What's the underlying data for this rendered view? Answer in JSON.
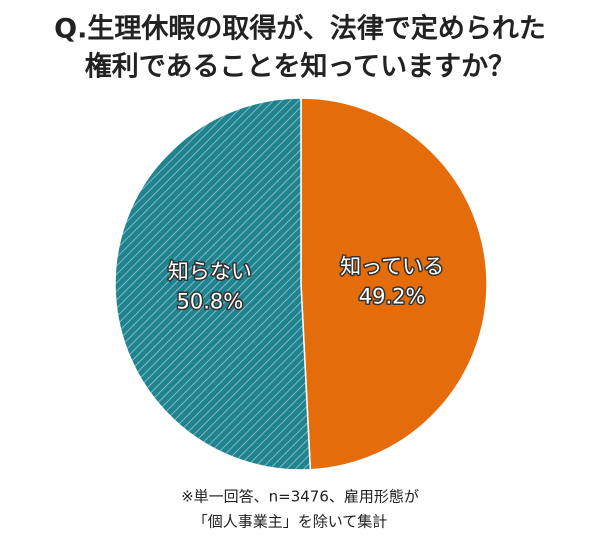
{
  "chart_data": {
    "type": "pie",
    "title": [
      "Q.生理休暇の取得が、法律で定められた",
      "権利であることを知っていますか？"
    ],
    "categories": [
      "知っている",
      "知らない"
    ],
    "values": [
      49.2,
      50.8
    ],
    "value_labels": [
      "49.2%",
      "50.8%"
    ],
    "colors": [
      "#e46c0a",
      "#1f8390"
    ],
    "note": [
      "※単一回答、n=3476、雇用形態が",
      "「個人事業主」を除いて集計"
    ]
  }
}
